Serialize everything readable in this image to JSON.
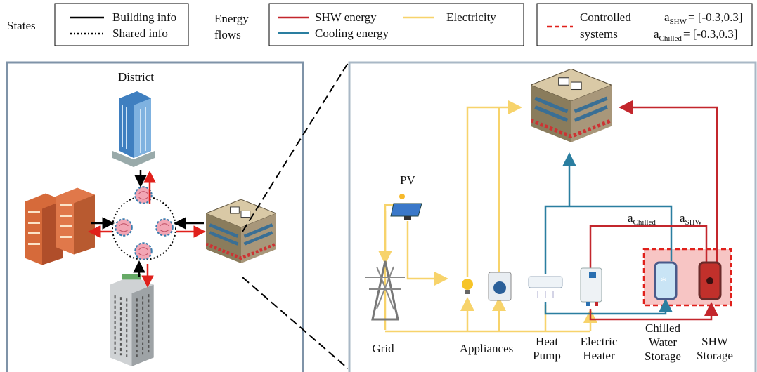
{
  "legend": {
    "states": {
      "title": "States",
      "items": [
        "Building info",
        "Shared info"
      ]
    },
    "energy": {
      "title": [
        "Energy",
        "flows"
      ],
      "items": [
        "SHW energy",
        "Electricity",
        "Cooling energy"
      ]
    },
    "control": {
      "title": [
        "Controlled",
        "systems"
      ],
      "actions": [
        {
          "base": "a",
          "sub": "SHW",
          "rest": "= [-0.3,0.3]"
        },
        {
          "base": "a",
          "sub": "Chilled",
          "rest": "= [-0.3,0.3]"
        }
      ]
    }
  },
  "district": {
    "title": "District"
  },
  "system": {
    "labels": {
      "pv": [
        "PV"
      ],
      "grid": [
        "Grid"
      ],
      "appliances": [
        "Appliances"
      ],
      "heat_pump": [
        "Heat",
        "Pump"
      ],
      "electric_heater": [
        "Electric",
        "Heater"
      ],
      "chilled": [
        "Chilled",
        "Water",
        "Storage"
      ],
      "shw": [
        "SHW",
        "Storage"
      ]
    },
    "actions": [
      {
        "base": "a",
        "sub": "Chilled"
      },
      {
        "base": "a",
        "sub": "SHW"
      }
    ]
  }
}
